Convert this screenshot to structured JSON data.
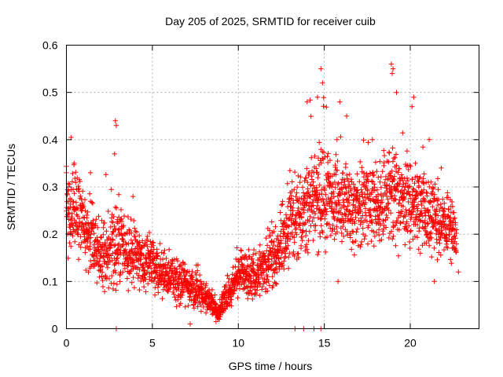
{
  "chart_data": {
    "type": "scatter",
    "title": "Day 205 of 2025, SRMTID for receiver cuib",
    "xlabel": "GPS time / hours",
    "ylabel": "SRMTID / TECUs",
    "xlim": [
      0,
      24
    ],
    "ylim": [
      0,
      0.6
    ],
    "xticks": [
      0,
      5,
      10,
      15,
      20
    ],
    "xtick_labels": [
      "0",
      "5",
      "10",
      "15",
      "20"
    ],
    "yticks": [
      0,
      0.1,
      0.2,
      0.3,
      0.4,
      0.5,
      0.6
    ],
    "ytick_labels": [
      "0",
      "0.1",
      "0.2",
      "0.3",
      "0.4",
      "0.5",
      "0.6"
    ],
    "grid": true,
    "marker": "+",
    "color": "#ff0000",
    "series": [
      {
        "name": "SRMTID",
        "trend_profile": {
          "hours": [
            0,
            0.5,
            1,
            1.5,
            2,
            2.5,
            3,
            3.5,
            4,
            4.5,
            5,
            5.5,
            6,
            6.5,
            7,
            7.5,
            8,
            8.5,
            8.8,
            9,
            9.5,
            10,
            10.5,
            11,
            11.5,
            12,
            12.5,
            13,
            13.5,
            14,
            14.5,
            15,
            15.5,
            16,
            16.5,
            17,
            17.5,
            18,
            18.5,
            19,
            19.5,
            20,
            20.5,
            21,
            21.5,
            22,
            22.7
          ],
          "median": [
            0.24,
            0.26,
            0.22,
            0.19,
            0.16,
            0.16,
            0.18,
            0.16,
            0.17,
            0.14,
            0.13,
            0.12,
            0.11,
            0.1,
            0.09,
            0.08,
            0.07,
            0.05,
            0.03,
            0.04,
            0.08,
            0.12,
            0.11,
            0.1,
            0.13,
            0.15,
            0.18,
            0.21,
            0.24,
            0.26,
            0.27,
            0.28,
            0.28,
            0.26,
            0.25,
            0.26,
            0.27,
            0.26,
            0.26,
            0.29,
            0.27,
            0.26,
            0.25,
            0.24,
            0.23,
            0.22,
            0.2
          ],
          "spread": [
            0.06,
            0.06,
            0.05,
            0.05,
            0.05,
            0.05,
            0.06,
            0.05,
            0.05,
            0.04,
            0.04,
            0.035,
            0.03,
            0.03,
            0.03,
            0.025,
            0.02,
            0.015,
            0.01,
            0.015,
            0.025,
            0.03,
            0.03,
            0.03,
            0.04,
            0.05,
            0.05,
            0.06,
            0.06,
            0.07,
            0.07,
            0.07,
            0.07,
            0.06,
            0.06,
            0.06,
            0.06,
            0.06,
            0.06,
            0.07,
            0.07,
            0.06,
            0.06,
            0.05,
            0.05,
            0.05,
            0.04
          ]
        },
        "notable_points": [
          {
            "x": 2.85,
            "y": 0.44
          },
          {
            "x": 2.9,
            "y": 0.43
          },
          {
            "x": 2.8,
            "y": 0.37
          },
          {
            "x": 14.8,
            "y": 0.55
          },
          {
            "x": 14.9,
            "y": 0.52
          },
          {
            "x": 14.6,
            "y": 0.49
          },
          {
            "x": 18.9,
            "y": 0.56
          },
          {
            "x": 19.0,
            "y": 0.55
          },
          {
            "x": 18.95,
            "y": 0.54
          },
          {
            "x": 19.2,
            "y": 0.5
          },
          {
            "x": 20.2,
            "y": 0.49
          },
          {
            "x": 20.1,
            "y": 0.47
          },
          {
            "x": 14.0,
            "y": 0.48
          },
          {
            "x": 15.9,
            "y": 0.48
          },
          {
            "x": 16.3,
            "y": 0.45
          },
          {
            "x": 0.45,
            "y": 0.35
          },
          {
            "x": 0.0,
            "y": 0.33
          },
          {
            "x": 1.4,
            "y": 0.33
          },
          {
            "x": 21.1,
            "y": 0.4
          },
          {
            "x": 21.8,
            "y": 0.34
          },
          {
            "x": 2.9,
            "y": 0.0
          },
          {
            "x": 13.3,
            "y": 0.0
          },
          {
            "x": 13.8,
            "y": 0.0
          },
          {
            "x": 14.4,
            "y": 0.0
          },
          {
            "x": 14.8,
            "y": 0.0
          },
          {
            "x": 7.2,
            "y": 0.01
          },
          {
            "x": 8.7,
            "y": 0.015
          },
          {
            "x": 8.9,
            "y": 0.02
          },
          {
            "x": 22.8,
            "y": 0.12
          },
          {
            "x": 21.4,
            "y": 0.1
          },
          {
            "x": 15.8,
            "y": 0.1
          }
        ]
      }
    ]
  }
}
